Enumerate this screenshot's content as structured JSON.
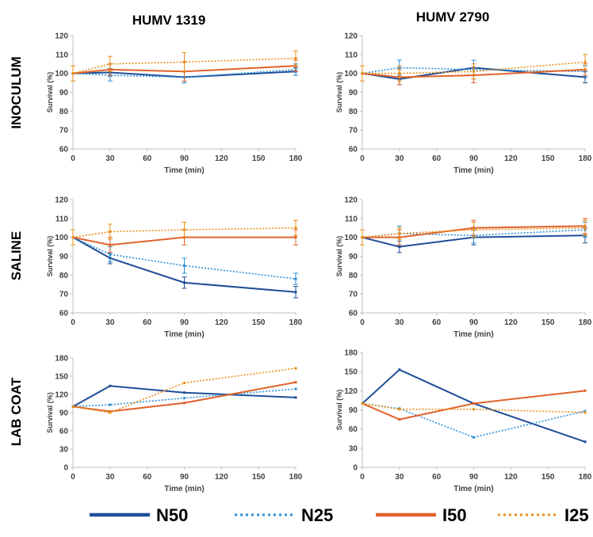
{
  "figure": {
    "columns": [
      "HUMV 1319",
      "HUMV 2790"
    ],
    "rows": [
      "INOCULUM",
      "SALINE",
      "LAB COAT"
    ],
    "colors": {
      "N50": "#1f4e99",
      "N25": "#2e8fd6",
      "I50": "#e0622a",
      "I25": "#e88f1a"
    }
  },
  "legend": [
    {
      "name": "N50",
      "color": "#1f4e99",
      "dash": "solid"
    },
    {
      "name": "N25",
      "color": "#2e8fd6",
      "dash": "dotted"
    },
    {
      "name": "I50",
      "color": "#e0622a",
      "dash": "solid"
    },
    {
      "name": "I25",
      "color": "#e88f1a",
      "dash": "dotted"
    }
  ],
  "chart_data": [
    {
      "type": "line",
      "column": "HUMV 1319",
      "row": "INOCULUM",
      "xlabel": "Time (min)",
      "ylabel": "Survival (%)",
      "x": [
        0,
        30,
        90,
        180
      ],
      "xticks": [
        0,
        30,
        60,
        90,
        120,
        150,
        180
      ],
      "ylim": [
        60,
        120
      ],
      "yticks": [
        60,
        70,
        80,
        90,
        100,
        110,
        120
      ],
      "series": [
        {
          "name": "N50",
          "values": [
            100,
            100.5,
            98,
            101
          ],
          "err": [
            0,
            2,
            3,
            2
          ]
        },
        {
          "name": "N25",
          "values": [
            100,
            99,
            98,
            102
          ],
          "err": [
            0,
            3,
            3,
            3
          ]
        },
        {
          "name": "I50",
          "values": [
            100,
            102,
            101,
            104
          ],
          "err": [
            0,
            3,
            5,
            3
          ]
        },
        {
          "name": "I25",
          "values": [
            100,
            105,
            106,
            108
          ],
          "err": [
            4,
            4,
            5,
            4
          ]
        }
      ]
    },
    {
      "type": "line",
      "column": "HUMV 2790",
      "row": "INOCULUM",
      "xlabel": "Time (min)",
      "ylabel": "Survival (%)",
      "x": [
        0,
        30,
        90,
        180
      ],
      "xticks": [
        0,
        30,
        60,
        90,
        120,
        150,
        180
      ],
      "ylim": [
        60,
        120
      ],
      "yticks": [
        60,
        70,
        80,
        90,
        100,
        110,
        120
      ],
      "series": [
        {
          "name": "N50",
          "values": [
            100,
            97,
            103,
            98
          ],
          "err": [
            0,
            3,
            4,
            3
          ]
        },
        {
          "name": "N25",
          "values": [
            100,
            103,
            102,
            101
          ],
          "err": [
            0,
            4,
            5,
            3
          ]
        },
        {
          "name": "I50",
          "values": [
            100,
            98,
            99,
            102
          ],
          "err": [
            0,
            4,
            4,
            3
          ]
        },
        {
          "name": "I25",
          "values": [
            100,
            100,
            101,
            106
          ],
          "err": [
            4,
            4,
            4,
            4
          ]
        }
      ]
    },
    {
      "type": "line",
      "column": "HUMV 1319",
      "row": "SALINE",
      "xlabel": "Time (min)",
      "ylabel": "Survival (%)",
      "x": [
        0,
        30,
        90,
        180
      ],
      "xticks": [
        0,
        30,
        60,
        90,
        120,
        150,
        180
      ],
      "ylim": [
        60,
        120
      ],
      "yticks": [
        60,
        70,
        80,
        90,
        100,
        110,
        120
      ],
      "series": [
        {
          "name": "N50",
          "values": [
            100,
            89,
            76,
            71
          ],
          "err": [
            0,
            3,
            3,
            3
          ]
        },
        {
          "name": "N25",
          "values": [
            100,
            91,
            85,
            78
          ],
          "err": [
            0,
            4,
            4,
            3
          ]
        },
        {
          "name": "I50",
          "values": [
            100,
            96,
            100,
            100
          ],
          "err": [
            0,
            4,
            4,
            4
          ]
        },
        {
          "name": "I25",
          "values": [
            100,
            103,
            104,
            105
          ],
          "err": [
            4,
            4,
            4,
            4
          ]
        }
      ]
    },
    {
      "type": "line",
      "column": "HUMV 2790",
      "row": "SALINE",
      "xlabel": "Time (min)",
      "ylabel": "Survival (%)",
      "x": [
        0,
        30,
        90,
        180
      ],
      "xticks": [
        0,
        30,
        60,
        90,
        120,
        150,
        180
      ],
      "ylim": [
        60,
        120
      ],
      "yticks": [
        60,
        70,
        80,
        90,
        100,
        110,
        120
      ],
      "series": [
        {
          "name": "N50",
          "values": [
            100,
            95,
            100,
            101
          ],
          "err": [
            0,
            3,
            4,
            4
          ]
        },
        {
          "name": "N25",
          "values": [
            100,
            102,
            101,
            104
          ],
          "err": [
            0,
            4,
            4,
            4
          ]
        },
        {
          "name": "I50",
          "values": [
            100,
            100,
            105,
            106
          ],
          "err": [
            0,
            4,
            4,
            4
          ]
        },
        {
          "name": "I25",
          "values": [
            100,
            102,
            104,
            105
          ],
          "err": [
            4,
            3,
            4,
            4
          ]
        }
      ]
    },
    {
      "type": "line",
      "column": "HUMV 1319",
      "row": "LAB COAT",
      "xlabel": "Time (min)",
      "ylabel": "Survival (%)",
      "x": [
        0,
        30,
        90,
        180
      ],
      "xticks": [
        0,
        30,
        60,
        90,
        120,
        150,
        180
      ],
      "ylim": [
        0,
        180
      ],
      "yticks": [
        0,
        30,
        60,
        90,
        120,
        150,
        180
      ],
      "series": [
        {
          "name": "N50",
          "values": [
            100,
            134,
            123,
            115
          ],
          "err": [
            0,
            0,
            0,
            0
          ]
        },
        {
          "name": "N25",
          "values": [
            100,
            103,
            114,
            129
          ],
          "err": [
            0,
            0,
            0,
            0
          ]
        },
        {
          "name": "I50",
          "values": [
            100,
            92,
            106,
            140
          ],
          "err": [
            0,
            0,
            0,
            0
          ]
        },
        {
          "name": "I25",
          "values": [
            100,
            90,
            139,
            163
          ],
          "err": [
            0,
            0,
            0,
            0
          ]
        }
      ]
    },
    {
      "type": "line",
      "column": "HUMV 2790",
      "row": "LAB COAT",
      "xlabel": "Time (min)",
      "ylabel": "Survival (%)",
      "x": [
        0,
        30,
        90,
        180
      ],
      "xticks": [
        0,
        30,
        60,
        90,
        120,
        150,
        180
      ],
      "ylim": [
        0,
        180
      ],
      "yticks": [
        0,
        30,
        60,
        90,
        120,
        150,
        180
      ],
      "series": [
        {
          "name": "N50",
          "values": [
            100,
            153,
            100,
            40
          ],
          "err": [
            0,
            0,
            0,
            0
          ]
        },
        {
          "name": "N25",
          "values": [
            100,
            92,
            47,
            88
          ],
          "err": [
            0,
            0,
            0,
            0
          ]
        },
        {
          "name": "I50",
          "values": [
            100,
            75,
            100,
            120
          ],
          "err": [
            0,
            0,
            0,
            0
          ]
        },
        {
          "name": "I25",
          "values": [
            100,
            91,
            91,
            86
          ],
          "err": [
            0,
            0,
            0,
            0
          ]
        }
      ]
    }
  ]
}
